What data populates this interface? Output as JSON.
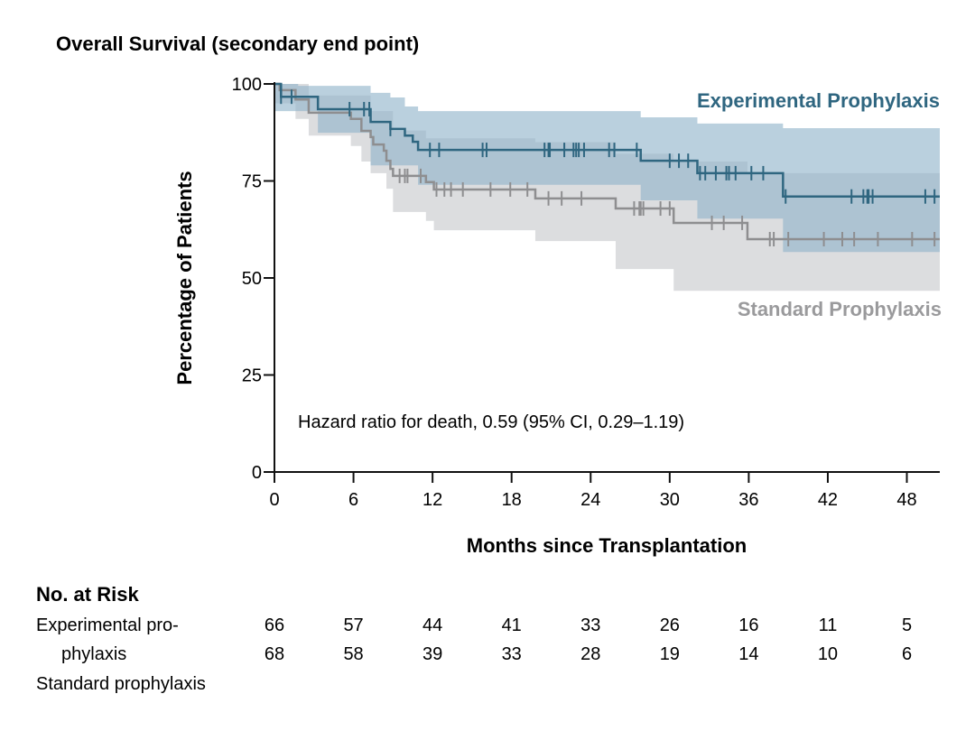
{
  "chart_data": {
    "type": "line",
    "subtype": "kaplan-meier",
    "title": "Overall Survival (secondary end point)",
    "xlabel": "Months since Transplantation",
    "ylabel": "Percentage of Patients",
    "xlim": [
      0,
      50.5
    ],
    "ylim": [
      0,
      100
    ],
    "xticks": [
      0,
      6,
      12,
      18,
      24,
      30,
      36,
      42,
      48
    ],
    "yticks": [
      0,
      25,
      50,
      75,
      100
    ],
    "grid": false,
    "annotation": "Hazard ratio for death, 0.59 (95% CI, 0.29–1.19)",
    "series": [
      {
        "name": "Experimental Prophylaxis",
        "color": "#2f6680",
        "band_color": "#8fb3c9",
        "steps": [
          [
            0,
            100
          ],
          [
            0.5,
            96.7
          ],
          [
            3.3,
            93.5
          ],
          [
            7.3,
            90.2
          ],
          [
            8.8,
            88.4
          ],
          [
            9.9,
            86.7
          ],
          [
            10.5,
            85.1
          ],
          [
            10.9,
            83.0
          ],
          [
            27.8,
            80.2
          ],
          [
            32.1,
            77.0
          ],
          [
            38.6,
            71.0
          ]
        ],
        "ci_upper": [
          [
            0,
            100
          ],
          [
            1.8,
            99.5
          ],
          [
            7.3,
            97.7
          ],
          [
            8.8,
            96.5
          ],
          [
            9.9,
            94.2
          ],
          [
            10.9,
            93.0
          ],
          [
            27.8,
            91.4
          ],
          [
            32.1,
            89.8
          ],
          [
            38.6,
            88.6
          ]
        ],
        "ci_lower": [
          [
            0,
            93
          ],
          [
            3.3,
            87.4
          ],
          [
            7.3,
            79
          ],
          [
            10.9,
            74
          ],
          [
            27.8,
            70
          ],
          [
            32.1,
            65.3
          ],
          [
            38.6,
            56.7
          ]
        ],
        "censored": [
          0.5,
          1.3,
          5.7,
          6.8,
          7.2,
          8.8,
          11.8,
          12.5,
          15.8,
          16.1,
          20.5,
          20.8,
          20.9,
          22,
          22.7,
          22.9,
          23.1,
          23.5,
          25.4,
          25.8,
          27.5,
          30,
          30.7,
          31.4,
          32.3,
          32.7,
          33.5,
          34.3,
          34.5,
          35,
          36.2,
          37.1,
          38.8,
          43.8,
          44.7,
          45,
          45.1,
          45.4,
          49.4,
          50.1
        ]
      },
      {
        "name": "Standard Prophylaxis",
        "color": "#8e8e90",
        "band_color": "#dcdddf",
        "steps": [
          [
            0,
            100
          ],
          [
            0.4,
            98.4
          ],
          [
            1.6,
            96
          ],
          [
            2.6,
            92.6
          ],
          [
            5.8,
            91
          ],
          [
            6.6,
            87.9
          ],
          [
            7.3,
            86.3
          ],
          [
            7.5,
            84.4
          ],
          [
            8.3,
            82.8
          ],
          [
            8.5,
            80.2
          ],
          [
            8.8,
            78.1
          ],
          [
            9.0,
            76.3
          ],
          [
            11.5,
            74.7
          ],
          [
            12.1,
            72.8
          ],
          [
            19.8,
            70.5
          ],
          [
            25.9,
            67.9
          ],
          [
            30.3,
            64.2
          ],
          [
            35.9,
            60.0
          ]
        ],
        "ci_upper": [
          [
            0,
            100
          ],
          [
            2.6,
            97
          ],
          [
            7.3,
            93
          ],
          [
            9.0,
            88
          ],
          [
            11.5,
            86
          ],
          [
            19.8,
            85
          ],
          [
            25.9,
            82
          ],
          [
            30.3,
            80
          ],
          [
            35.9,
            77
          ]
        ],
        "ci_lower": [
          [
            0,
            95
          ],
          [
            1.6,
            91
          ],
          [
            2.6,
            86.7
          ],
          [
            5.8,
            84
          ],
          [
            6.6,
            80
          ],
          [
            7.3,
            77
          ],
          [
            8.5,
            73
          ],
          [
            9.0,
            67
          ],
          [
            11.5,
            64.7
          ],
          [
            12.1,
            62.3
          ],
          [
            19.8,
            59.5
          ],
          [
            25.9,
            52.3
          ],
          [
            30.3,
            46.7
          ]
        ],
        "censored": [
          9.5,
          9.9,
          10.1,
          11.1,
          12.3,
          12.9,
          13.4,
          14.3,
          16.4,
          17.9,
          19.2,
          20.8,
          21.8,
          23.3,
          27.3,
          27.7,
          27.8,
          28,
          29.3,
          30,
          33.2,
          34.1,
          35.5,
          37.6,
          37.9,
          39,
          41.7,
          43.1,
          44,
          45.8,
          48.4,
          50.1
        ]
      }
    ],
    "risk_table": {
      "title": "No. at Risk",
      "row_labels": [
        "Experimental pro-",
        "phylaxis",
        "Standard prophylaxis"
      ],
      "rows": [
        {
          "name": "Experimental prophylaxis",
          "values": [
            66,
            57,
            44,
            41,
            33,
            26,
            16,
            11,
            5
          ]
        },
        {
          "name": "Standard prophylaxis",
          "values": [
            68,
            58,
            39,
            33,
            28,
            19,
            14,
            10,
            6
          ]
        }
      ]
    }
  }
}
